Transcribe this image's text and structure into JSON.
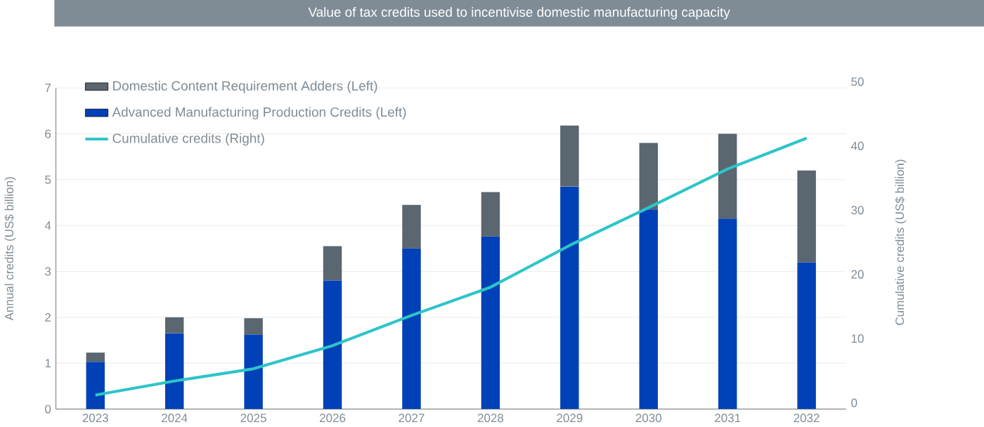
{
  "chart_data": {
    "type": "bar",
    "title": "Value of tax credits used to incentivise domestic manufacturing capacity",
    "ylabel": "Annual credits (US$ billion)",
    "y2label": "Cumulative credits (US$ billion)",
    "categories": [
      "2023",
      "2024",
      "2025",
      "2026",
      "2027",
      "2028",
      "2029",
      "2030",
      "2031",
      "2032"
    ],
    "stacked": true,
    "grid": "y",
    "legend": "top left",
    "ylim": [
      0,
      7
    ],
    "yticks": [
      0,
      1,
      2,
      3,
      4,
      5,
      6,
      7
    ],
    "y2lim": [
      0,
      50
    ],
    "y2ticks": [
      0,
      10,
      20,
      30,
      40,
      50
    ],
    "series": [
      {
        "name": "Advanced Manufacturing Production Credits (Left)",
        "color": "#0041b8",
        "values": [
          1.03,
          1.65,
          1.62,
          2.8,
          3.5,
          3.76,
          4.85,
          4.35,
          4.15,
          3.2
        ]
      },
      {
        "name": "Domestic Content Requirement Adders (Left)",
        "color": "#5a6670",
        "values": [
          0.2,
          0.35,
          0.36,
          0.75,
          0.95,
          0.97,
          1.33,
          1.45,
          1.85,
          2.0
        ]
      },
      {
        "name": "Cumulative credits (Right)",
        "type": "line",
        "axis": "y2",
        "color": "#2ec4c9",
        "values": [
          1.2,
          3.4,
          5.3,
          8.9,
          13.6,
          18.0,
          24.5,
          30.4,
          36.4,
          41.2
        ]
      }
    ]
  }
}
